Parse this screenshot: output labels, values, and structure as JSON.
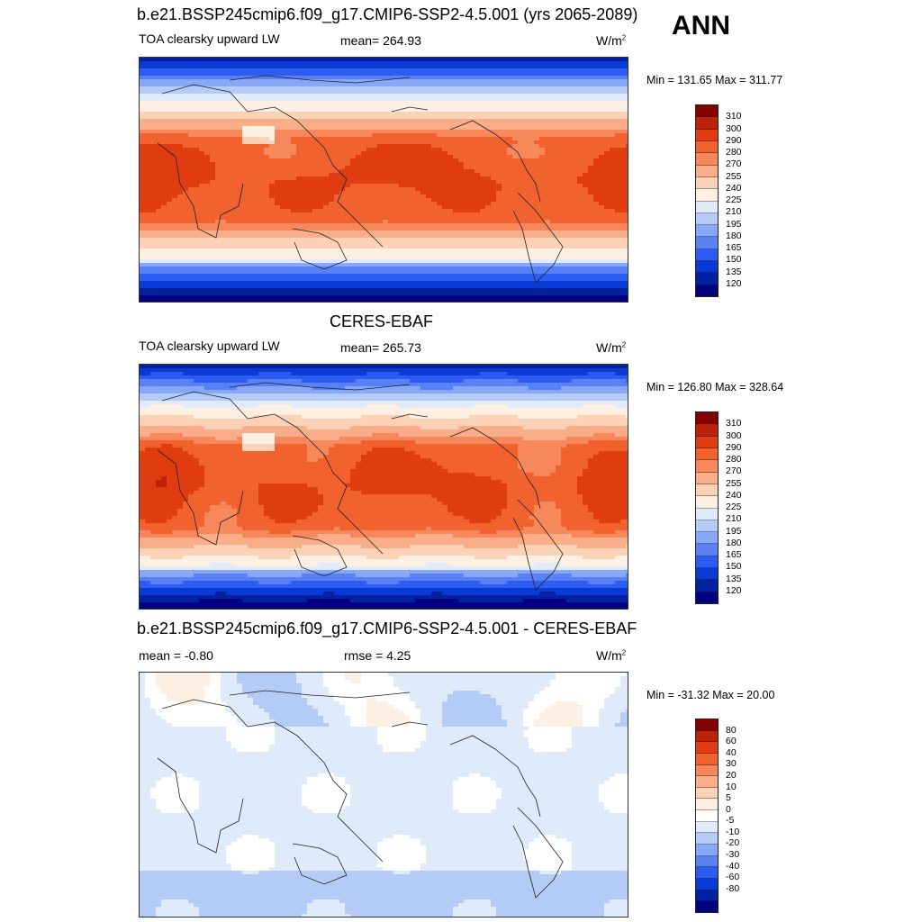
{
  "season": "ANN",
  "colors": {
    "abs_scale": [
      "#000080",
      "#0022a0",
      "#0a3ad6",
      "#2d5cf2",
      "#5781f5",
      "#86a8f7",
      "#b4cbf8",
      "#dfeafb",
      "#fdefe1",
      "#fbd2b6",
      "#f9ad88",
      "#f7885c",
      "#f2622f",
      "#e03c12",
      "#bb2208",
      "#870000"
    ],
    "diff_scale": [
      "#000080",
      "#0022a0",
      "#0a3ad6",
      "#2d5cf2",
      "#5781f5",
      "#86a8f7",
      "#b4cbf8",
      "#dfeafb",
      "#ffffff",
      "#fdefe1",
      "#fbd2b6",
      "#f9ad88",
      "#f7885c",
      "#f2622f",
      "#e03c12",
      "#bb2208",
      "#870000"
    ]
  },
  "panels": [
    {
      "title": "b.e21.BSSP245cmip6.f09_g17.CMIP6-SSP2-4.5.001 (yrs 2065-2089)",
      "left": "TOA clearsky upward LW",
      "middle": "mean= 264.93",
      "units": "W/m",
      "units_sup": "2",
      "minmax": "Min = 131.65 Max = 311.77",
      "scale": "abs",
      "levels": [
        "310",
        "300",
        "290",
        "280",
        "270",
        "255",
        "240",
        "225",
        "210",
        "195",
        "180",
        "165",
        "150",
        "135",
        "120"
      ]
    },
    {
      "title": "CERES-EBAF",
      "left": "TOA clearsky upward LW",
      "middle": "mean= 265.73",
      "units": "W/m",
      "units_sup": "2",
      "minmax": "Min = 126.80 Max = 328.64",
      "scale": "abs",
      "levels": [
        "310",
        "300",
        "290",
        "280",
        "270",
        "255",
        "240",
        "225",
        "210",
        "195",
        "180",
        "165",
        "150",
        "135",
        "120"
      ]
    },
    {
      "title": "b.e21.BSSP245cmip6.f09_g17.CMIP6-SSP2-4.5.001 - CERES-EBAF",
      "left": "mean =  -0.80",
      "middle": "rmse =   4.25",
      "units": "W/m",
      "units_sup": "2",
      "minmax": "Min = -31.32 Max =  20.00",
      "scale": "diff",
      "levels": [
        "80",
        "60",
        "40",
        "30",
        "20",
        "10",
        "5",
        "0",
        "-5",
        "-10",
        "-20",
        "-30",
        "-40",
        "-60",
        "-80"
      ]
    }
  ]
}
